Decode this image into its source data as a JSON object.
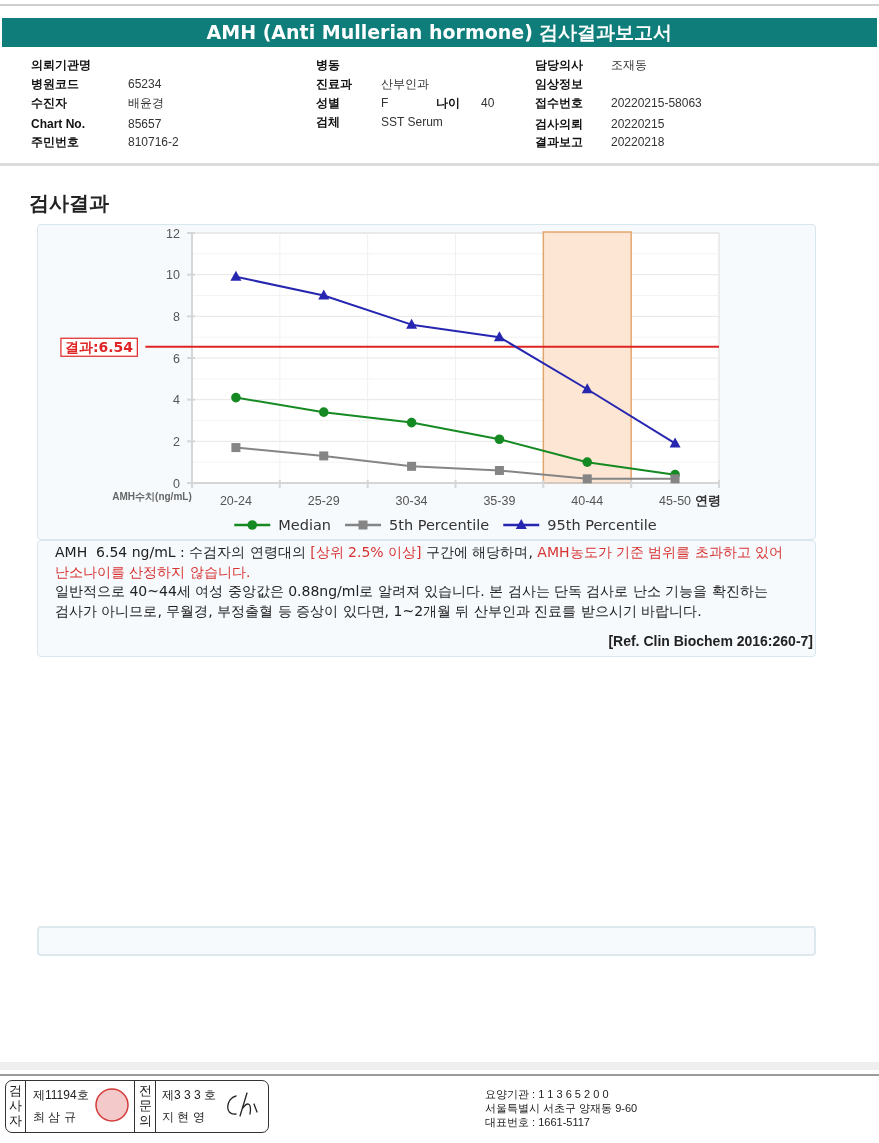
{
  "chart_data": {
    "type": "line",
    "title": "AMH (Anti Mullerian hormone) 검사결과보고서",
    "subtitle": "검사결과",
    "xlabel": "연령",
    "ylabel": "AMH수치(ng/mL)",
    "categories": [
      "20-24",
      "25-29",
      "30-34",
      "35-39",
      "40-44",
      "45-50"
    ],
    "series": [
      {
        "name": "Median",
        "color": "#168a22",
        "marker": "circle",
        "values": [
          4.1,
          3.4,
          2.9,
          2.1,
          1.0,
          0.4
        ]
      },
      {
        "name": "5th Percentile",
        "color": "#858585",
        "marker": "square",
        "values": [
          1.7,
          1.3,
          0.8,
          0.6,
          0.2,
          0.2
        ]
      },
      {
        "name": "95th Percentile",
        "color": "#2626b0",
        "marker": "triangle",
        "values": [
          9.9,
          9.0,
          7.6,
          7.0,
          4.5,
          1.9
        ]
      }
    ],
    "ylim": [
      0,
      12
    ],
    "yticks": [
      0,
      {
        "value": 1,
        "label": null
      },
      2,
      {
        "value": 3,
        "label": null
      },
      4,
      {
        "value": 5,
        "label": null
      },
      6,
      {
        "value": 7,
        "label": null
      },
      8,
      {
        "value": 9,
        "label": null
      },
      10,
      {
        "value": 11,
        "label": null
      },
      12
    ],
    "grid": true,
    "legend": "bottom",
    "line_style": "solid",
    "ref_lines": [
      {
        "axis": "y",
        "value": 6.54,
        "label": "결과:6.54",
        "color": "#e02424"
      }
    ],
    "bands": [
      {
        "axis": "x",
        "from": "40-44",
        "to": "40-44",
        "color": "#fde3cf"
      }
    ],
    "annotations": [
      "의뢰기관명",
      "병원코드",
      "65234",
      "수진자",
      "배윤경",
      "Chart No.",
      "85657",
      "주민번호",
      "810716-2",
      "병동",
      "진료과",
      "산부인과",
      "성별",
      "F",
      "나이",
      "40",
      "검체",
      "SST Serum",
      "담당의사",
      "조재동",
      "임상정보",
      "접수번호",
      "20220215-58063",
      "검사의뢰",
      "20220215",
      "결과보고",
      "20220218",
      "AMH  6.54 ng/mL : 수검자의 연령대의",
      "[상위 2.5% 이상]",
      "구간에 해당하며,",
      "AMH농도가 기준 범위를 초과하고 있어 난소나이를 산정하지 않습니다.",
      "일반적으로 40~44세 여성 중앙값은 0.88ng/ml로 알려져 있습니다. 본 검사는 단독 검사로 난소 기능을 확진하는 검사가 아니므로, 무월경, 부정출혈 등 증상이 있다면, 1~2개월 뒤 산부인과 진료를 받으시기 바랍니다.",
      "[Ref. Clin Biochem 2016:260-7]",
      "검사자",
      "제11194호",
      "최 삼 규",
      "전문의",
      "제3 3 3 호",
      "지 현 영",
      "요양기관 : 1 1 3 6 5 2 0 0",
      "서울특별시 서초구 양재동 9-60",
      "대표번호 : 1661-5117"
    ]
  }
}
